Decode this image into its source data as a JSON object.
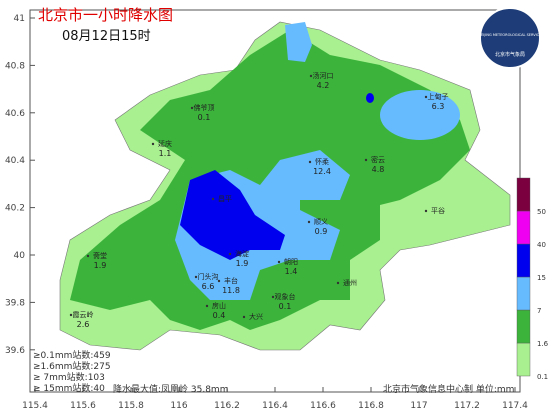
{
  "header": {
    "title": "北京市一小时降水图",
    "time": "08月12日15时"
  },
  "axes": {
    "lat_ticks": [
      41,
      40.8,
      40.6,
      40.4,
      40.2,
      40,
      39.8,
      39.6
    ],
    "lon_ticks": [
      115.4,
      115.6,
      115.8,
      116,
      116.2,
      116.4,
      116.6,
      116.8,
      117,
      117.2,
      117.4
    ]
  },
  "stations": [
    {
      "name": "汤河口",
      "value": "4.2"
    },
    {
      "name": "上甸子",
      "value": "6.3"
    },
    {
      "name": "佛爷顶",
      "value": "0.1"
    },
    {
      "name": "延庆",
      "value": "1.1"
    },
    {
      "name": "怀柔",
      "value": "12.4"
    },
    {
      "name": "密云",
      "value": "4.8"
    },
    {
      "name": "昌平"
    },
    {
      "name": "顺义",
      "value": "0.9"
    },
    {
      "name": "平谷"
    },
    {
      "name": "斋堂",
      "value": "1.9"
    },
    {
      "name": "海淀",
      "value": "1.9"
    },
    {
      "name": "朝阳",
      "value": "1.4"
    },
    {
      "name": "门头沟",
      "value": "6.6"
    },
    {
      "name": "丰台",
      "value": "11.8"
    },
    {
      "name": "房山",
      "value": "0.4"
    },
    {
      "name": "大兴"
    },
    {
      "name": "观象台",
      "value": "0.1"
    },
    {
      "name": "通州"
    },
    {
      "name": "霞云岭",
      "value": "2.6"
    }
  ],
  "stats": [
    "≥0.1mm站数:459",
    "≥1.6mm站数:275",
    "≥ 7mm站数:103",
    "≥ 15mm站数:40"
  ],
  "max_note": "降水最大值:凤凰岭 35.8mm",
  "footer": "北京市气象信息中心制 单位:mm",
  "legend": {
    "levels": [
      {
        "value": 0.1,
        "color": "#a8f090"
      },
      {
        "value": 1.6,
        "color": "#3cb43c"
      },
      {
        "value": 7,
        "color": "#66bbff"
      },
      {
        "value": 15,
        "color": "#0000ee"
      },
      {
        "value": 40,
        "color": "#f000f0"
      },
      {
        "value": 50,
        "color": "#7a0040"
      }
    ]
  },
  "logo": {
    "text": "BEIJING METEOROLOGICAL SERVICE",
    "sub": "北京市气象局"
  }
}
